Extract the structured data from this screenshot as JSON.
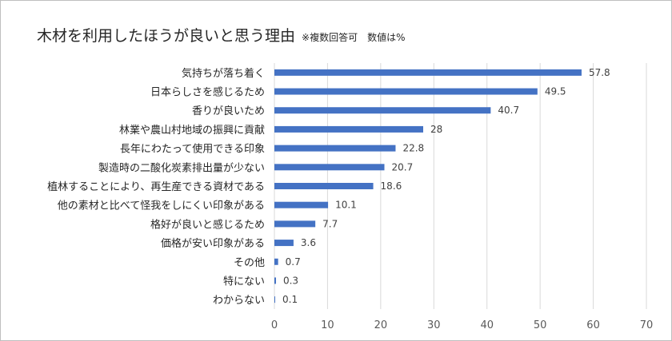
{
  "chart_data": {
    "type": "bar",
    "orientation": "horizontal",
    "title": "木材を利用したほうが良いと思う理由",
    "subtitle": "※複数回答可　数値は%",
    "categories": [
      "気持ちが落ち着く",
      "日本らしさを感じるため",
      "香りが良いため",
      "林業や農山村地域の振興に貢献",
      "長年にわたって使用できる印象",
      "製造時の二酸化炭素排出量が少ない",
      "植林することにより、再生産できる資材である",
      "他の素材と比べて怪我をしにくい印象がある",
      "格好が良いと感じるため",
      "価格が安い印象がある",
      "その他",
      "特にない",
      "わからない"
    ],
    "values": [
      57.8,
      49.5,
      40.7,
      28,
      22.8,
      20.7,
      18.6,
      10.1,
      7.7,
      3.6,
      0.7,
      0.3,
      0.1
    ],
    "value_labels": [
      "57.8",
      "49.5",
      "40.7",
      "28",
      "22.8",
      "20.7",
      "18.6",
      "10.1",
      "7.7",
      "3.6",
      "0.7",
      "0.3",
      "0.1"
    ],
    "xlim": [
      0,
      70
    ],
    "xticks": [
      0,
      10,
      20,
      30,
      40,
      50,
      60,
      70
    ],
    "grid": true,
    "bar_color": "#4472c4",
    "grid_color": "#d9d9d9"
  }
}
